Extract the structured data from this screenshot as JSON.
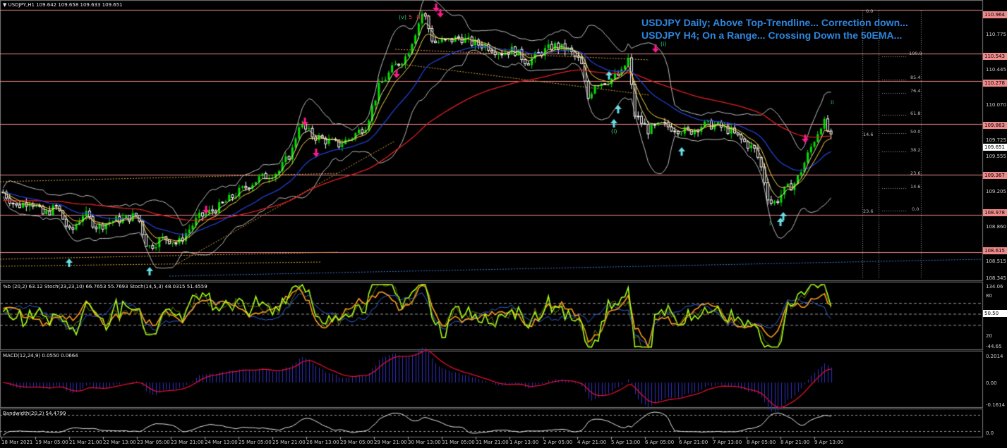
{
  "main_header": "USDJPY,H1  109.642 109.658 109.633 109.651",
  "annotation": {
    "line1": "USDJPY Daily; Above Top-Trendline... Correction down...",
    "line2": "USDJPY H4; On a Range... Crossing Down the 50EMA..."
  },
  "osc_header": "%b (20,2) 63.12  Stoch(23,23,10) 66.7653 55.7693  Stoch(14,5,3) 48.0315 51.4559",
  "macd_header": "MACD(12,24,9) 0.0550 0.0664",
  "bw_header": "Bandwidth(20,2) 54.4799",
  "colors": {
    "background": "#000000",
    "candle_up": "#00e000",
    "candle_down": "#ffffff",
    "hline": "#f08a8a",
    "ema200": "#e02020",
    "ema50": "#2040d0",
    "bollinger": "#bdbdbd",
    "fast_ma": "#ffd54a",
    "down_arrow": "#ff1a8c",
    "up_arrow": "#66e0e8",
    "annotation": "#2e86de",
    "stoch_lime": "#a6ff1a",
    "stoch_orange": "#ff9a1a",
    "macd_hist": "#3030c0",
    "macd_signal": "#e01030"
  },
  "price_axis": {
    "ticks": [
      "110.775",
      "110.445",
      "110.070",
      "109.725",
      "109.555",
      "109.205",
      "108.860",
      "108.515",
      "108.345"
    ],
    "highlighted": [
      "110.964",
      "110.543",
      "110.278",
      "109.863",
      "109.651",
      "109.367",
      "108.978",
      "108.615"
    ]
  },
  "osc_axis": [
    "134.06",
    "80",
    "50.50",
    "20",
    "-44.65"
  ],
  "macd_axis": [
    "0.2014",
    "0.00",
    "-0.1614"
  ],
  "bw_axis": [
    "0.0"
  ],
  "fib_levels": [
    "0.0",
    "100.0",
    "85.4",
    "76.4",
    "61.8",
    "50.0",
    "38.2",
    "23.6",
    "14.6",
    "0.0",
    "14.6",
    "23.6"
  ],
  "wave_labels": [
    "(v)",
    "5",
    "(i)",
    "?",
    "(i)",
    "(i)",
    "ii",
    "i"
  ],
  "x_ticks": [
    "18 Mar 2021",
    "19 Mar 05:00",
    "21 Mar 21:00",
    "22 Mar 13:00",
    "23 Mar 05:00",
    "23 Mar 21:00",
    "24 Mar 13:00",
    "25 Mar 05:00",
    "25 Mar 21:00",
    "26 Mar 13:00",
    "29 Mar 05:00",
    "29 Mar 21:00",
    "30 Mar 13:00",
    "31 Mar 05:00",
    "31 Mar 21:00",
    "1 Apr 13:00",
    "2 Apr 05:00",
    "4 Apr 21:00",
    "5 Apr 13:00",
    "6 Apr 05:00",
    "6 Apr 21:00",
    "7 Apr 13:00",
    "8 Apr 05:00",
    "8 Apr 21:00",
    "9 Apr 13:00"
  ],
  "chart_data": {
    "type": "candlestick",
    "symbol": "USDJPY",
    "timeframe": "H1",
    "ylim": [
      108.345,
      110.98
    ],
    "hlines": [
      110.964,
      110.543,
      110.278,
      109.863,
      109.367,
      108.978,
      108.615
    ],
    "price_path": [
      [
        0,
        109.2
      ],
      [
        20,
        109.06
      ],
      [
        40,
        109.12
      ],
      [
        60,
        108.98
      ],
      [
        80,
        109.06
      ],
      [
        100,
        108.8
      ],
      [
        120,
        109.0
      ],
      [
        140,
        108.86
      ],
      [
        160,
        108.92
      ],
      [
        180,
        108.94
      ],
      [
        200,
        108.98
      ],
      [
        215,
        108.66
      ],
      [
        240,
        108.76
      ],
      [
        260,
        108.7
      ],
      [
        290,
        108.95
      ],
      [
        320,
        109.05
      ],
      [
        350,
        109.2
      ],
      [
        380,
        109.33
      ],
      [
        410,
        109.4
      ],
      [
        430,
        109.6
      ],
      [
        440,
        109.86
      ],
      [
        460,
        109.75
      ],
      [
        480,
        109.7
      ],
      [
        500,
        109.66
      ],
      [
        520,
        109.74
      ],
      [
        540,
        109.85
      ],
      [
        560,
        110.23
      ],
      [
        580,
        110.4
      ],
      [
        600,
        110.52
      ],
      [
        615,
        110.78
      ],
      [
        625,
        110.96
      ],
      [
        640,
        110.65
      ],
      [
        660,
        110.66
      ],
      [
        680,
        110.7
      ],
      [
        700,
        110.64
      ],
      [
        720,
        110.62
      ],
      [
        740,
        110.55
      ],
      [
        760,
        110.58
      ],
      [
        780,
        110.46
      ],
      [
        800,
        110.55
      ],
      [
        820,
        110.62
      ],
      [
        840,
        110.58
      ],
      [
        860,
        110.46
      ],
      [
        870,
        110.1
      ],
      [
        880,
        110.25
      ],
      [
        900,
        110.28
      ],
      [
        920,
        110.35
      ],
      [
        930,
        110.5
      ],
      [
        940,
        109.95
      ],
      [
        960,
        109.8
      ],
      [
        980,
        109.85
      ],
      [
        1000,
        109.82
      ],
      [
        1020,
        109.78
      ],
      [
        1040,
        109.85
      ],
      [
        1060,
        109.85
      ],
      [
        1080,
        109.8
      ],
      [
        1100,
        109.7
      ],
      [
        1120,
        109.6
      ],
      [
        1130,
        109.4
      ],
      [
        1140,
        109.1
      ],
      [
        1150,
        109.1
      ],
      [
        1160,
        109.2
      ],
      [
        1180,
        109.3
      ],
      [
        1200,
        109.6
      ],
      [
        1210,
        109.75
      ],
      [
        1220,
        109.9
      ],
      [
        1232,
        109.72
      ]
    ],
    "x_range": [
      0,
      1232
    ]
  }
}
